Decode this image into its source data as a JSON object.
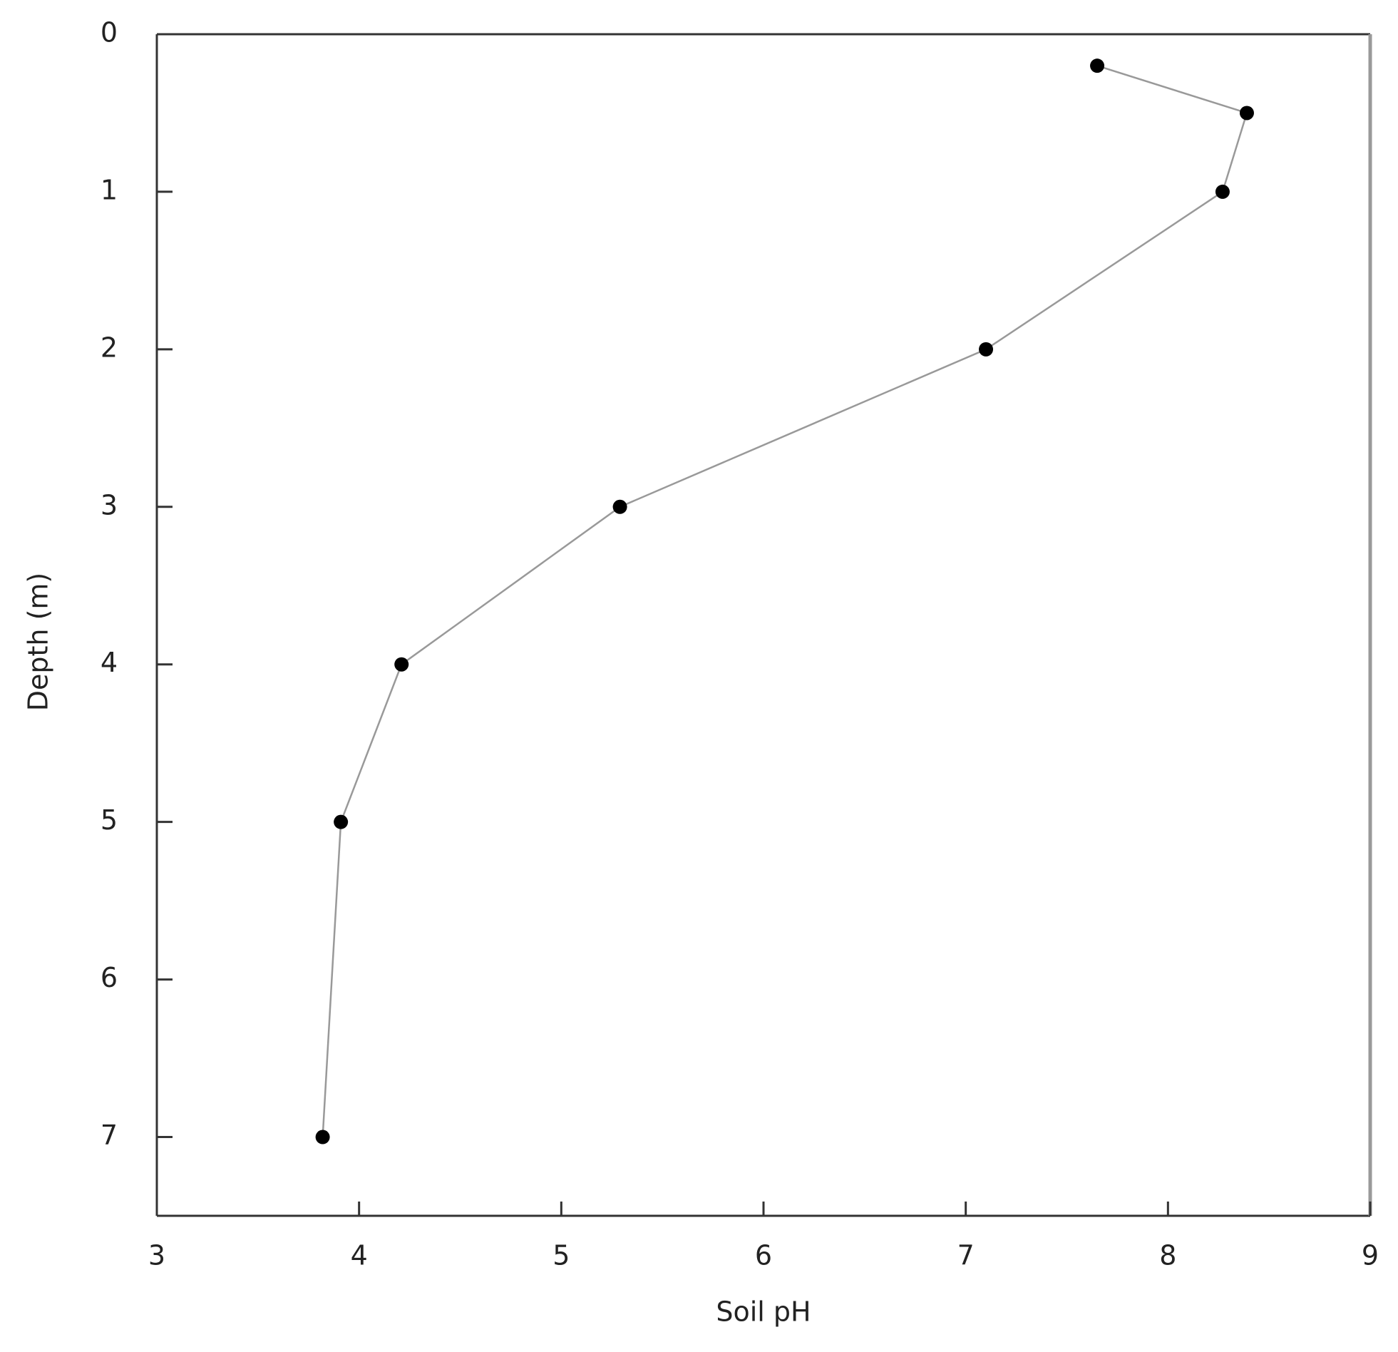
{
  "chart_data": {
    "type": "line",
    "x_label": "Soil pH",
    "y_label": "Depth (m)",
    "x": [
      7.65,
      8.39,
      8.27,
      7.1,
      5.29,
      4.21,
      3.91,
      3.82
    ],
    "series": [
      {
        "values": [
          0.2,
          0.5,
          1,
          2,
          3,
          4,
          5,
          7
        ],
        "color": "#000000",
        "line_color": "#999999"
      }
    ],
    "xlim": [
      3,
      9
    ],
    "xticks": [
      3,
      4,
      5,
      6,
      7,
      8,
      9
    ],
    "ylim": [
      0,
      7.5
    ],
    "yticks": [
      0,
      1,
      2,
      3,
      4,
      5,
      6,
      7
    ],
    "y_inverted": true,
    "grid": false
  }
}
